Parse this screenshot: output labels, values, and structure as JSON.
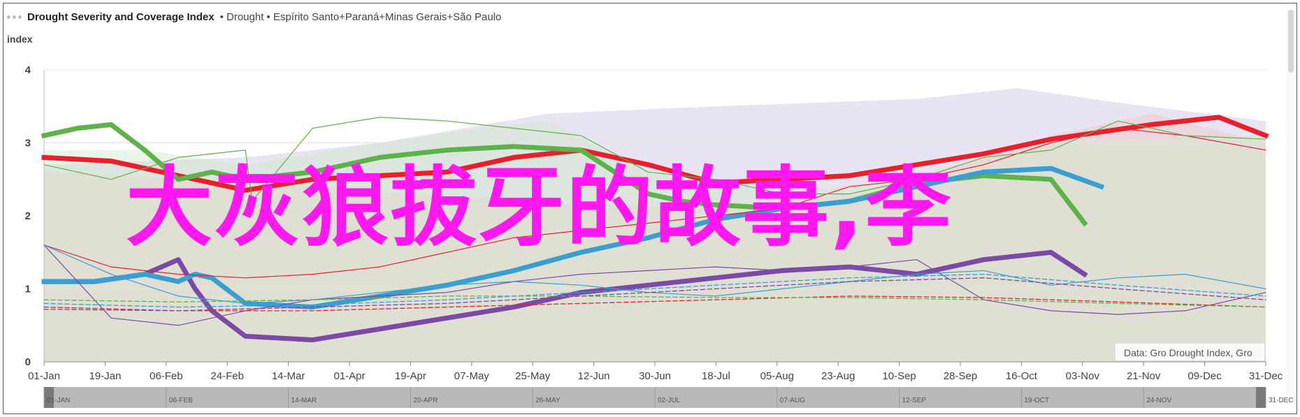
{
  "header": {
    "title": "Drought Severity and Coverage Index",
    "subtitle": "• Drought • Espírito Santo+Paraná+Minas Gerais+São Paulo"
  },
  "overlay_text": "大灰狼拔牙的故事,李",
  "chart_data": {
    "type": "line",
    "ylabel": "index",
    "ylim": [
      0,
      4
    ],
    "yticks": [
      "0",
      "1",
      "2",
      "3",
      "4"
    ],
    "grid": true,
    "xticks": [
      "01-Jan",
      "19-Jan",
      "06-Feb",
      "24-Feb",
      "14-Mar",
      "01-Apr",
      "19-Apr",
      "07-May",
      "25-May",
      "12-Jun",
      "30-Jun",
      "18-Jul",
      "05-Aug",
      "23-Aug",
      "10-Sep",
      "28-Sep",
      "16-Oct",
      "03-Nov",
      "21-Nov",
      "09-Dec",
      "31-Dec"
    ],
    "navigator_ticks": [
      "01-JAN",
      "06-FEB",
      "14-MAR",
      "20-APR",
      "26-MAY",
      "02-JUL",
      "07-AUG",
      "12-SEP",
      "19-OCT",
      "24-NOV",
      "31-DEC"
    ],
    "credit": "Data: Gro Drought Index, Gro",
    "x_days": [
      0,
      364
    ],
    "colors": {
      "red": "#e8202e",
      "green": "#5db34a",
      "purple": "#7b4aa5",
      "blue": "#3a9fcf",
      "band_red": "#f2c7c7",
      "band_purple": "#cfc3e1",
      "band_green": "#cfe9c7"
    },
    "bands": [
      {
        "color": "band_purple",
        "opacity": 0.45,
        "upper": [
          [
            0,
            2.7
          ],
          [
            60,
            2.8
          ],
          [
            100,
            3.0
          ],
          [
            150,
            3.4
          ],
          [
            200,
            3.5
          ],
          [
            260,
            3.6
          ],
          [
            290,
            3.75
          ],
          [
            320,
            3.55
          ],
          [
            364,
            3.3
          ]
        ],
        "lower": [
          [
            0,
            0.0
          ],
          [
            364,
            0.0
          ]
        ]
      },
      {
        "color": "band_red",
        "opacity": 0.45,
        "upper": [
          [
            0,
            2.6
          ],
          [
            40,
            2.5
          ],
          [
            80,
            2.4
          ],
          [
            140,
            2.2
          ],
          [
            200,
            2.1
          ],
          [
            240,
            2.3
          ],
          [
            280,
            2.8
          ],
          [
            300,
            3.1
          ],
          [
            330,
            3.4
          ],
          [
            364,
            3.0
          ]
        ],
        "lower": [
          [
            0,
            0.0
          ],
          [
            364,
            0.0
          ]
        ]
      },
      {
        "color": "band_green",
        "opacity": 0.45,
        "upper": [
          [
            0,
            2.9
          ],
          [
            30,
            2.9
          ],
          [
            60,
            2.7
          ],
          [
            100,
            3.0
          ],
          [
            130,
            3.2
          ],
          [
            150,
            3.3
          ],
          [
            180,
            2.6
          ],
          [
            220,
            2.3
          ],
          [
            270,
            2.6
          ],
          [
            300,
            3.0
          ],
          [
            364,
            3.1
          ]
        ],
        "lower": [
          [
            0,
            0.0
          ],
          [
            364,
            0.0
          ]
        ]
      }
    ],
    "series": [
      {
        "color": "red",
        "width": 7,
        "dash": "",
        "x": [
          0,
          20,
          40,
          60,
          80,
          100,
          120,
          140,
          160,
          180,
          200,
          220,
          240,
          260,
          280,
          300,
          330,
          350,
          364
        ],
        "y": [
          2.8,
          2.75,
          2.55,
          2.35,
          2.5,
          2.55,
          2.6,
          2.8,
          2.9,
          2.7,
          2.45,
          2.5,
          2.55,
          2.7,
          2.85,
          3.05,
          3.25,
          3.35,
          3.1
        ]
      },
      {
        "color": "green",
        "width": 7,
        "dash": "",
        "x": [
          0,
          10,
          20,
          30,
          40,
          50,
          60,
          80,
          100,
          120,
          140,
          160,
          180,
          190,
          200,
          220,
          240,
          260,
          280,
          300,
          310
        ],
        "y": [
          3.1,
          3.2,
          3.25,
          2.9,
          2.5,
          2.6,
          2.5,
          2.6,
          2.8,
          2.9,
          2.95,
          2.9,
          2.3,
          2.2,
          2.15,
          2.1,
          2.2,
          2.45,
          2.55,
          2.5,
          1.9
        ]
      },
      {
        "color": "purple",
        "width": 7,
        "dash": "",
        "x": [
          0,
          15,
          30,
          40,
          45,
          50,
          60,
          80,
          100,
          120,
          140,
          160,
          180,
          200,
          220,
          240,
          260,
          280,
          300,
          310
        ],
        "y": [
          1.1,
          1.1,
          1.2,
          1.4,
          1.0,
          0.7,
          0.35,
          0.3,
          0.45,
          0.6,
          0.75,
          0.95,
          1.05,
          1.15,
          1.25,
          1.3,
          1.2,
          1.4,
          1.5,
          1.2
        ]
      },
      {
        "color": "blue",
        "width": 7,
        "dash": "",
        "x": [
          0,
          15,
          30,
          40,
          45,
          50,
          60,
          80,
          100,
          120,
          140,
          160,
          180,
          200,
          220,
          240,
          260,
          280,
          300,
          315
        ],
        "y": [
          1.1,
          1.1,
          1.2,
          1.1,
          1.2,
          1.15,
          0.8,
          0.75,
          0.9,
          1.05,
          1.25,
          1.5,
          1.7,
          1.95,
          2.1,
          2.2,
          2.4,
          2.6,
          2.65,
          2.4
        ]
      },
      {
        "color": "red",
        "width": 1.2,
        "dash": "",
        "x": [
          0,
          20,
          40,
          60,
          80,
          100,
          120,
          140,
          160,
          180,
          200,
          220,
          240,
          260,
          280,
          300,
          320,
          340,
          364
        ],
        "y": [
          1.6,
          1.3,
          1.2,
          1.15,
          1.2,
          1.3,
          1.5,
          1.7,
          1.8,
          1.9,
          2.0,
          2.1,
          2.4,
          2.5,
          2.7,
          3.0,
          3.2,
          3.1,
          2.9
        ]
      },
      {
        "color": "green",
        "width": 1.2,
        "dash": "",
        "x": [
          0,
          20,
          40,
          60,
          62,
          80,
          100,
          120,
          140,
          160,
          180,
          200,
          220,
          240,
          260,
          280,
          300,
          320,
          340,
          364
        ],
        "y": [
          2.7,
          2.5,
          2.8,
          2.9,
          2.2,
          3.2,
          3.35,
          3.3,
          3.2,
          3.1,
          2.6,
          2.5,
          2.3,
          2.3,
          2.5,
          2.8,
          2.9,
          3.3,
          3.1,
          3.05
        ]
      },
      {
        "color": "purple",
        "width": 1.2,
        "dash": "",
        "x": [
          0,
          20,
          40,
          60,
          80,
          100,
          120,
          140,
          160,
          180,
          200,
          220,
          240,
          260,
          280,
          300,
          320,
          340,
          364
        ],
        "y": [
          1.6,
          0.6,
          0.5,
          0.7,
          0.85,
          0.9,
          0.95,
          1.1,
          1.2,
          1.25,
          1.3,
          1.25,
          1.3,
          1.4,
          0.85,
          0.7,
          0.65,
          0.7,
          0.95
        ]
      },
      {
        "color": "blue",
        "width": 1.2,
        "dash": "",
        "x": [
          0,
          20,
          40,
          60,
          80,
          100,
          120,
          140,
          160,
          180,
          200,
          220,
          240,
          260,
          280,
          300,
          320,
          340,
          364
        ],
        "y": [
          1.6,
          1.2,
          0.9,
          0.8,
          0.85,
          0.95,
          1.05,
          1.1,
          1.05,
          0.95,
          0.9,
          1.0,
          1.1,
          1.2,
          1.25,
          1.05,
          1.15,
          1.2,
          1.0
        ]
      },
      {
        "color": "red",
        "width": 1.3,
        "dash": "6,4",
        "x": [
          0,
          40,
          80,
          120,
          160,
          200,
          240,
          280,
          320,
          364
        ],
        "y": [
          0.75,
          0.7,
          0.7,
          0.75,
          0.8,
          0.85,
          0.9,
          0.88,
          0.82,
          0.75
        ]
      },
      {
        "color": "green",
        "width": 1.3,
        "dash": "6,4",
        "x": [
          0,
          40,
          80,
          120,
          160,
          200,
          240,
          280,
          320,
          364
        ],
        "y": [
          0.85,
          0.82,
          0.85,
          0.9,
          0.9,
          0.88,
          0.88,
          0.85,
          0.8,
          0.75
        ]
      },
      {
        "color": "purple",
        "width": 1.3,
        "dash": "6,4",
        "x": [
          0,
          40,
          80,
          120,
          160,
          200,
          240,
          280,
          320,
          364
        ],
        "y": [
          0.72,
          0.7,
          0.75,
          0.8,
          0.9,
          1.0,
          1.1,
          1.15,
          1.0,
          0.85
        ]
      },
      {
        "color": "blue",
        "width": 1.3,
        "dash": "6,4",
        "x": [
          0,
          40,
          80,
          120,
          160,
          200,
          240,
          280,
          320,
          364
        ],
        "y": [
          0.8,
          0.75,
          0.78,
          0.85,
          0.95,
          1.05,
          1.15,
          1.2,
          1.05,
          0.9
        ]
      }
    ]
  }
}
